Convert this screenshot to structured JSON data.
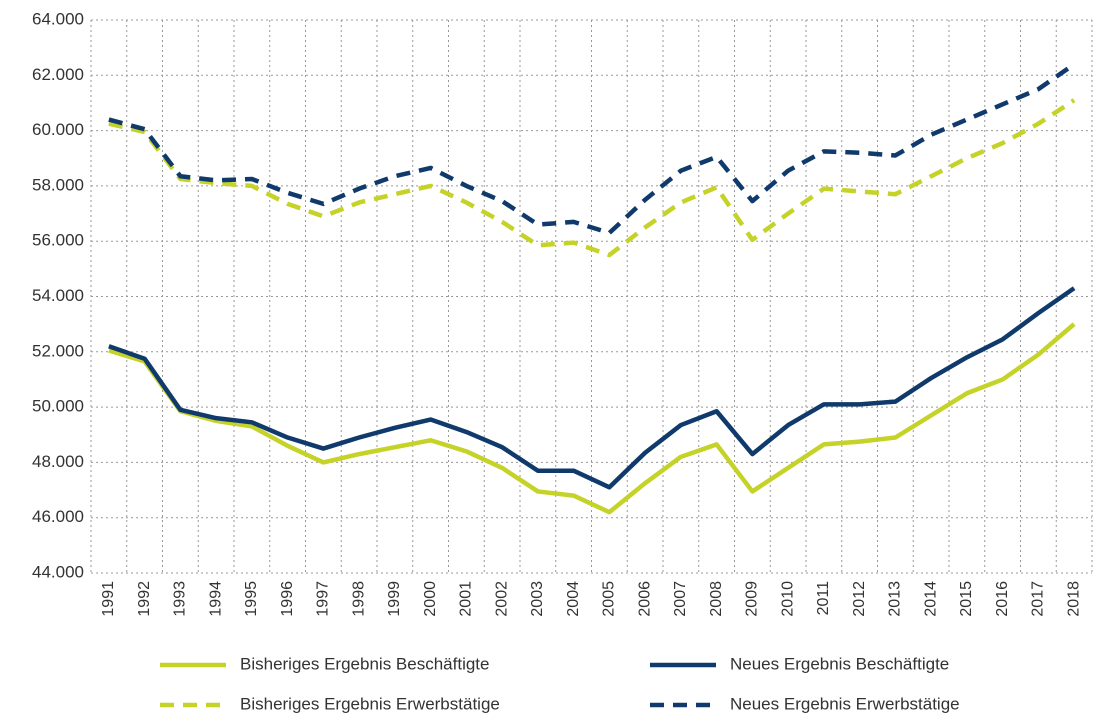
{
  "chart_data": {
    "type": "line",
    "categories": [
      "1991",
      "1992",
      "1993",
      "1994",
      "1995",
      "1996",
      "1997",
      "1998",
      "1999",
      "2000",
      "2001",
      "2002",
      "2003",
      "2004",
      "2005",
      "2006",
      "2007",
      "2008",
      "2009",
      "2010",
      "2011",
      "2012",
      "2013",
      "2014",
      "2015",
      "2016",
      "2017",
      "2018"
    ],
    "series": [
      {
        "name": "Bisheriges Ergebnis Beschäftigte",
        "color": "#c5d228",
        "dashed": false,
        "values": [
          52050,
          51650,
          49850,
          49500,
          49300,
          48600,
          48000,
          48300,
          48550,
          48800,
          48400,
          47800,
          46950,
          46800,
          46200,
          47250,
          48200,
          48650,
          46950,
          47800,
          48650,
          48750,
          48900,
          49700,
          50500,
          51000,
          51900,
          53000
        ]
      },
      {
        "name": "Neues Ergebnis Beschäftigte",
        "color": "#0f3a6b",
        "dashed": false,
        "values": [
          52200,
          51750,
          49900,
          49600,
          49450,
          48900,
          48500,
          48900,
          49250,
          49550,
          49100,
          48550,
          47700,
          47700,
          47100,
          48350,
          49350,
          49850,
          48300,
          49350,
          50100,
          50100,
          50200,
          51050,
          51800,
          52450,
          53400,
          54300
        ]
      },
      {
        "name": "Bisheriges Ergebnis Erwerbstätige",
        "color": "#c5d228",
        "dashed": true,
        "values": [
          60250,
          59950,
          58250,
          58100,
          58000,
          57350,
          56900,
          57400,
          57700,
          58000,
          57400,
          56700,
          55850,
          55950,
          55500,
          56500,
          57400,
          57950,
          56050,
          57000,
          57900,
          57800,
          57700,
          58350,
          59000,
          59550,
          60250,
          61100
        ]
      },
      {
        "name": "Neues Ergebnis Erwerbstätige",
        "color": "#0f3a6b",
        "dashed": true,
        "values": [
          60400,
          60050,
          58350,
          58200,
          58250,
          57750,
          57350,
          57900,
          58350,
          58650,
          58000,
          57450,
          56600,
          56700,
          56300,
          57500,
          58550,
          59050,
          57450,
          58550,
          59250,
          59200,
          59100,
          59850,
          60400,
          60950,
          61500,
          62400
        ]
      }
    ],
    "ylim": [
      44000,
      64000
    ],
    "yticks": [
      {
        "value": 44000,
        "label": "44.000"
      },
      {
        "value": 46000,
        "label": "46.000"
      },
      {
        "value": 48000,
        "label": "48.000"
      },
      {
        "value": 50000,
        "label": "50.000"
      },
      {
        "value": 52000,
        "label": "52.000"
      },
      {
        "value": 54000,
        "label": "54.000"
      },
      {
        "value": 56000,
        "label": "56.000"
      },
      {
        "value": 58000,
        "label": "58.000"
      },
      {
        "value": 60000,
        "label": "60.000"
      },
      {
        "value": 62000,
        "label": "62.000"
      },
      {
        "value": 64000,
        "label": "64.000"
      }
    ],
    "grid": true,
    "legend": "bottom"
  }
}
